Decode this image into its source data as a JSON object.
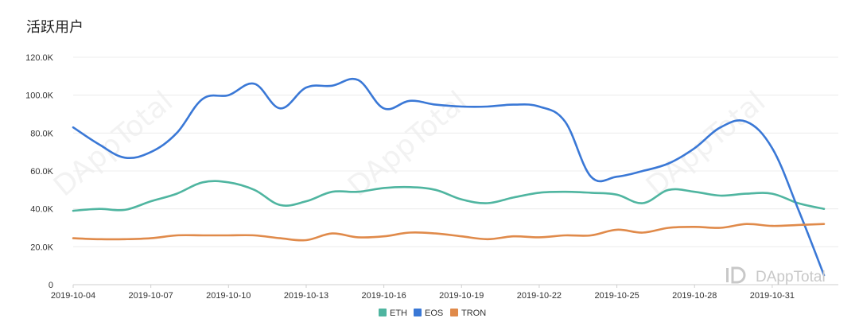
{
  "chart_data": {
    "type": "line",
    "title": "活跃用户",
    "xlabel": "",
    "ylabel": "",
    "ylim": [
      0,
      120000
    ],
    "y_ticks": [
      0,
      20000,
      40000,
      60000,
      80000,
      100000,
      120000
    ],
    "y_tick_labels": [
      "0",
      "20.0K",
      "40.0K",
      "60.0K",
      "80.0K",
      "100.0K",
      "120.0K"
    ],
    "x": [
      "2019-10-04",
      "2019-10-05",
      "2019-10-06",
      "2019-10-07",
      "2019-10-08",
      "2019-10-09",
      "2019-10-10",
      "2019-10-11",
      "2019-10-12",
      "2019-10-13",
      "2019-10-14",
      "2019-10-15",
      "2019-10-16",
      "2019-10-17",
      "2019-10-18",
      "2019-10-19",
      "2019-10-20",
      "2019-10-21",
      "2019-10-22",
      "2019-10-23",
      "2019-10-24",
      "2019-10-25",
      "2019-10-26",
      "2019-10-27",
      "2019-10-28",
      "2019-10-29",
      "2019-10-30",
      "2019-10-31",
      "2019-11-01",
      "2019-11-02"
    ],
    "x_tick_labels": [
      "2019-10-04",
      "2019-10-07",
      "2019-10-10",
      "2019-10-13",
      "2019-10-16",
      "2019-10-19",
      "2019-10-22",
      "2019-10-25",
      "2019-10-28",
      "2019-10-31"
    ],
    "grid": true,
    "legend_position": "bottom-center",
    "series": [
      {
        "name": "ETH",
        "color": "#4fb5a0",
        "values": [
          39000,
          40000,
          39500,
          44000,
          48000,
          54000,
          54000,
          50000,
          42000,
          44000,
          49000,
          49000,
          51000,
          51500,
          50000,
          45000,
          43000,
          46000,
          48500,
          49000,
          48500,
          47500,
          43000,
          50000,
          49000,
          47000,
          48000,
          48000,
          43000,
          40000
        ]
      },
      {
        "name": "EOS",
        "color": "#3a78d6",
        "values": [
          83000,
          74000,
          67000,
          70000,
          80000,
          98000,
          100000,
          106000,
          93000,
          104000,
          105000,
          108000,
          93000,
          97000,
          95000,
          94000,
          94000,
          95000,
          94000,
          86000,
          57000,
          57000,
          60000,
          64000,
          72000,
          83000,
          86000,
          72000,
          40000,
          5000
        ]
      },
      {
        "name": "TRON",
        "color": "#e08a4a",
        "values": [
          24500,
          24000,
          24000,
          24500,
          26000,
          26000,
          26000,
          26000,
          24500,
          23500,
          27000,
          25000,
          25500,
          27500,
          27000,
          25500,
          24000,
          25500,
          25000,
          26000,
          26000,
          29000,
          27500,
          30000,
          30500,
          30000,
          32000,
          31000,
          31500,
          32000
        ]
      }
    ]
  },
  "watermark": {
    "text": "DAppTotal",
    "logo_glyph": "iD"
  }
}
